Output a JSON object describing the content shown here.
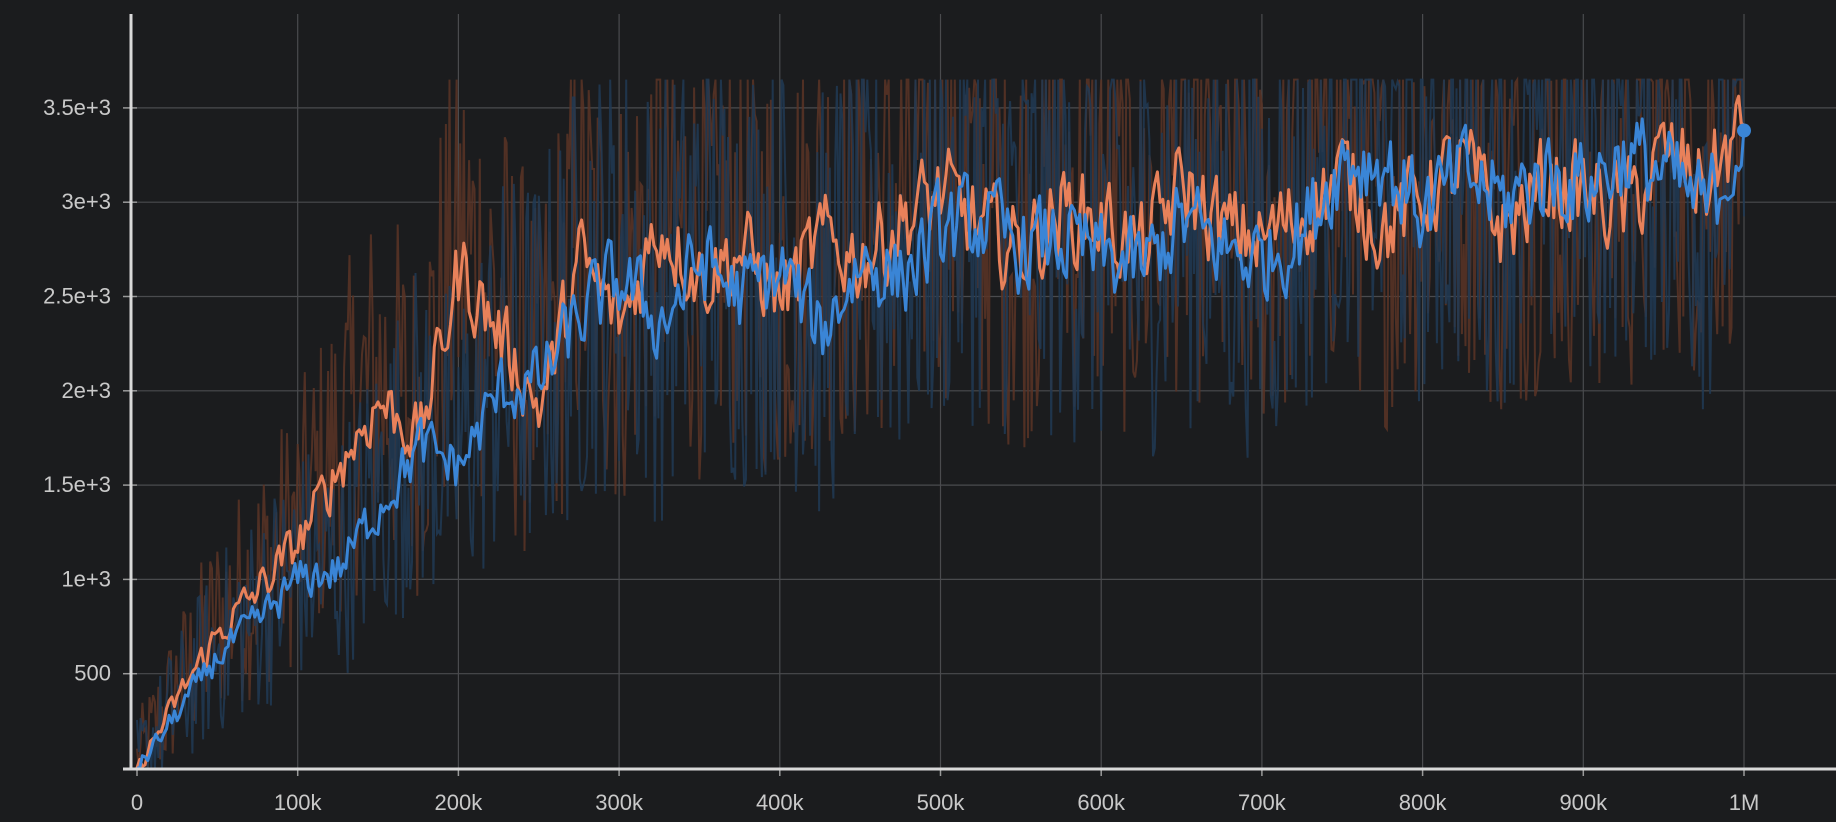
{
  "chart_data": {
    "type": "line",
    "title": "",
    "xlabel": "",
    "ylabel": "",
    "xlim": [
      0,
      1050000
    ],
    "ylim": [
      0,
      3700
    ],
    "grid": true,
    "x_ticks": [
      {
        "value": 0,
        "label": "0"
      },
      {
        "value": 100000,
        "label": "100k"
      },
      {
        "value": 200000,
        "label": "200k"
      },
      {
        "value": 300000,
        "label": "300k"
      },
      {
        "value": 400000,
        "label": "400k"
      },
      {
        "value": 500000,
        "label": "500k"
      },
      {
        "value": 600000,
        "label": "600k"
      },
      {
        "value": 700000,
        "label": "700k"
      },
      {
        "value": 800000,
        "label": "800k"
      },
      {
        "value": 900000,
        "label": "900k"
      },
      {
        "value": 1000000,
        "label": "1M"
      }
    ],
    "y_ticks": [
      {
        "value": 500,
        "label": "500"
      },
      {
        "value": 1000,
        "label": "1e+3"
      },
      {
        "value": 1500,
        "label": "1.5e+3"
      },
      {
        "value": 2000,
        "label": "2e+3"
      },
      {
        "value": 2500,
        "label": "2.5e+3"
      },
      {
        "value": 3000,
        "label": "3e+3"
      },
      {
        "value": 3500,
        "label": "3.5e+3"
      }
    ],
    "series": [
      {
        "color": "#e8815a",
        "raw_color": "#5a3426",
        "x": [
          0,
          25000,
          50000,
          75000,
          100000,
          125000,
          150000,
          175000,
          200000,
          225000,
          250000,
          275000,
          300000,
          325000,
          350000,
          375000,
          400000,
          425000,
          450000,
          475000,
          500000,
          525000,
          550000,
          575000,
          600000,
          625000,
          650000,
          675000,
          700000,
          725000,
          750000,
          775000,
          800000,
          825000,
          850000,
          875000,
          900000,
          925000,
          950000,
          975000,
          1000000
        ],
        "values": [
          0,
          380,
          720,
          950,
          1200,
          1600,
          1950,
          1750,
          2650,
          2300,
          1900,
          2700,
          2350,
          2900,
          2600,
          2750,
          2500,
          2800,
          2700,
          2900,
          3050,
          2850,
          2750,
          2950,
          2900,
          2750,
          3100,
          2850,
          2800,
          2950,
          3150,
          2850,
          3050,
          3200,
          2850,
          3100,
          3050,
          2950,
          3250,
          3100,
          3400
        ]
      },
      {
        "color": "#3a85d6",
        "raw_color": "#203a55",
        "x": [
          0,
          25000,
          50000,
          75000,
          100000,
          125000,
          150000,
          175000,
          200000,
          225000,
          250000,
          275000,
          300000,
          325000,
          350000,
          375000,
          400000,
          425000,
          450000,
          475000,
          500000,
          525000,
          550000,
          575000,
          600000,
          625000,
          650000,
          675000,
          700000,
          725000,
          750000,
          775000,
          800000,
          825000,
          850000,
          875000,
          900000,
          925000,
          950000,
          975000,
          1000000
        ],
        "values": [
          0,
          300,
          600,
          780,
          1000,
          1050,
          1400,
          1700,
          1600,
          2000,
          2050,
          2400,
          2600,
          2350,
          2700,
          2500,
          2650,
          2300,
          2700,
          2600,
          2850,
          2900,
          2750,
          2800,
          2700,
          2650,
          2900,
          2750,
          2700,
          2850,
          3250,
          3200,
          2950,
          3150,
          3000,
          3150,
          3100,
          3250,
          3150,
          2950,
          3380
        ]
      }
    ]
  }
}
